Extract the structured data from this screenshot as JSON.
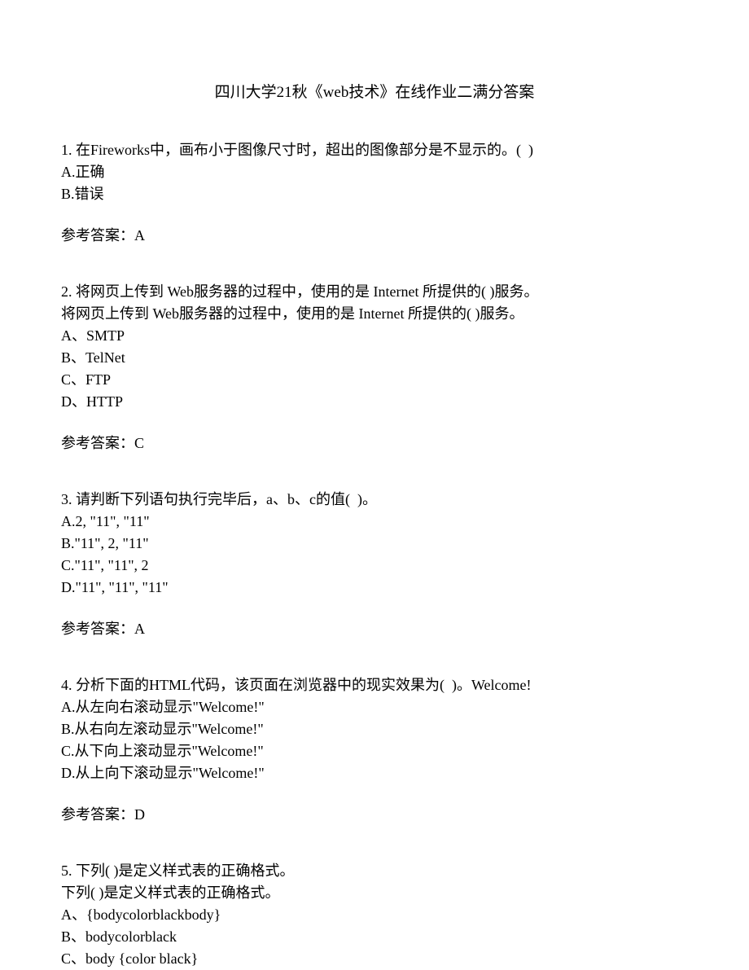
{
  "title": "四川大学21秋《web技术》在线作业二满分答案",
  "questions": [
    {
      "stem": "1. 在Fireworks中，画布小于图像尺寸时，超出的图像部分是不显示的。(  )",
      "options": [
        "A.正确",
        "B.错误"
      ],
      "answer": "参考答案：A"
    },
    {
      "stem": "2. 将网页上传到 Web服务器的过程中，使用的是 Internet 所提供的( )服务。",
      "sub": "将网页上传到 Web服务器的过程中，使用的是 Internet 所提供的( )服务。",
      "options": [
        "A、SMTP",
        "B、TelNet",
        "C、FTP",
        "D、HTTP"
      ],
      "answer": "参考答案：C"
    },
    {
      "stem": "3. 请判断下列语句执行完毕后，a、b、c的值(  )。",
      "options": [
        "A.2, \"11\", \"11\"",
        "B.\"11\", 2, \"11\"",
        "C.\"11\", \"11\", 2",
        "D.\"11\", \"11\", \"11\""
      ],
      "answer": "参考答案：A"
    },
    {
      "stem": "4. 分析下面的HTML代码，该页面在浏览器中的现实效果为(  )。Welcome!",
      "options": [
        "A.从左向右滚动显示\"Welcome!\"",
        "B.从右向左滚动显示\"Welcome!\"",
        "C.从下向上滚动显示\"Welcome!\"",
        "D.从上向下滚动显示\"Welcome!\""
      ],
      "answer": "参考答案：D"
    },
    {
      "stem": "5. 下列( )是定义样式表的正确格式。",
      "sub": "下列( )是定义样式表的正确格式。",
      "options": [
        "A、{bodycolorblackbody}",
        "B、bodycolorblack",
        "C、body {color black}"
      ]
    }
  ]
}
